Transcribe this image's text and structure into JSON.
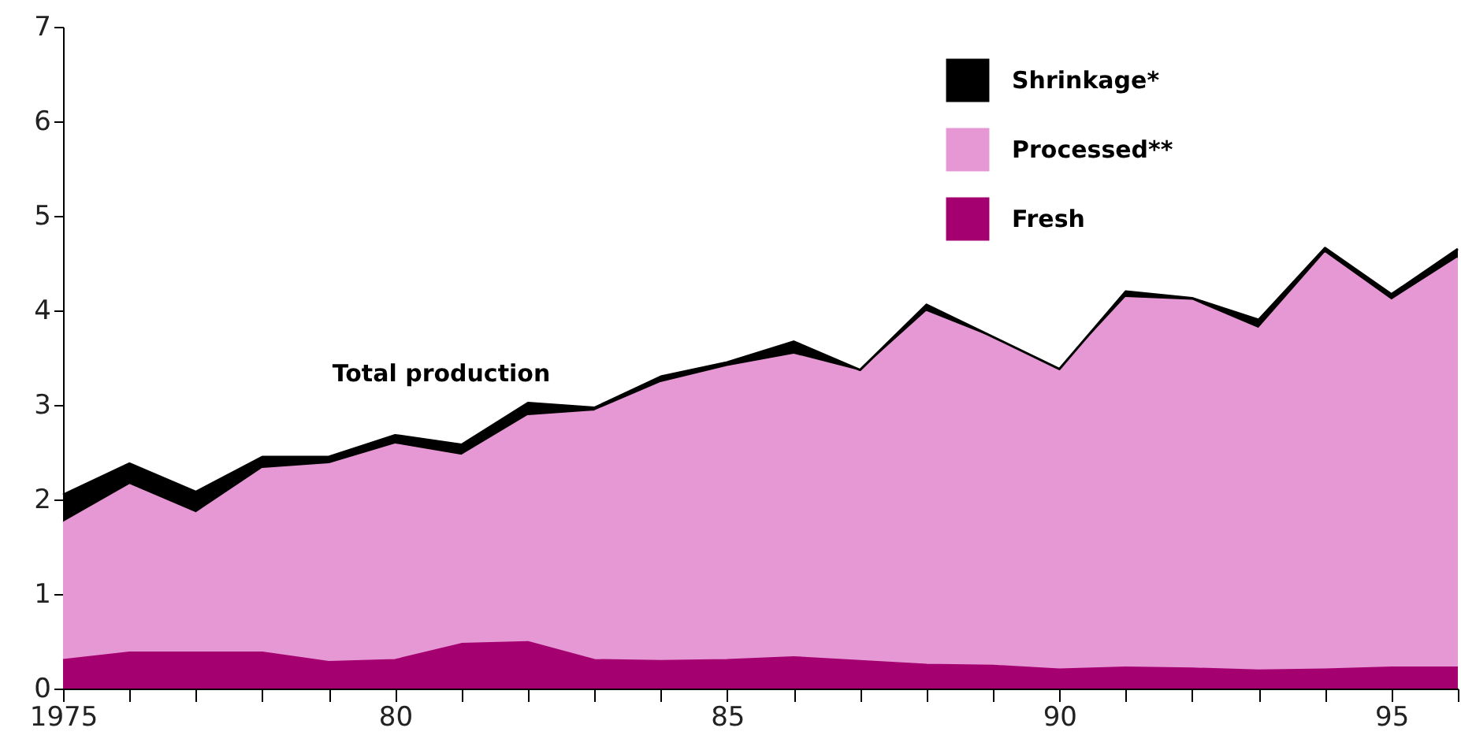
{
  "chart_data": {
    "type": "area",
    "stacked": true,
    "x": [
      1975,
      1976,
      1977,
      1978,
      1979,
      1980,
      1981,
      1982,
      1983,
      1984,
      1985,
      1986,
      1987,
      1988,
      1989,
      1990,
      1991,
      1992,
      1993,
      1994,
      1995,
      1996
    ],
    "series": [
      {
        "name": "Fresh",
        "color": "#a50070",
        "values": [
          0.3,
          0.38,
          0.38,
          0.38,
          0.28,
          0.3,
          0.47,
          0.49,
          0.3,
          0.29,
          0.3,
          0.33,
          0.29,
          0.25,
          0.24,
          0.2,
          0.22,
          0.21,
          0.19,
          0.2,
          0.22,
          0.22
        ]
      },
      {
        "name": "Processed**",
        "color": "#e698d4",
        "values": [
          1.45,
          1.77,
          1.47,
          1.94,
          2.09,
          2.28,
          1.99,
          2.39,
          2.63,
          2.94,
          3.1,
          3.2,
          3.06,
          3.73,
          3.46,
          3.17,
          3.91,
          3.89,
          3.61,
          4.4,
          3.88,
          4.33
        ]
      },
      {
        "name": "Shrinkage*",
        "color": "#000000",
        "values": [
          0.3,
          0.23,
          0.23,
          0.13,
          0.08,
          0.1,
          0.12,
          0.14,
          0.04,
          0.07,
          0.05,
          0.14,
          0.02,
          0.08,
          0.02,
          0.01,
          0.07,
          0.03,
          0.1,
          0.06,
          0.07,
          0.1
        ]
      }
    ],
    "xlim": [
      1975,
      1996
    ],
    "xticks": [
      {
        "value": 1975,
        "label": "1975"
      },
      {
        "value": 1976,
        "label": null
      },
      {
        "value": 1977,
        "label": null
      },
      {
        "value": 1978,
        "label": null
      },
      {
        "value": 1979,
        "label": null
      },
      {
        "value": 1980,
        "label": "80"
      },
      {
        "value": 1981,
        "label": null
      },
      {
        "value": 1982,
        "label": null
      },
      {
        "value": 1983,
        "label": null
      },
      {
        "value": 1984,
        "label": null
      },
      {
        "value": 1985,
        "label": "85"
      },
      {
        "value": 1986,
        "label": null
      },
      {
        "value": 1987,
        "label": null
      },
      {
        "value": 1988,
        "label": null
      },
      {
        "value": 1989,
        "label": null
      },
      {
        "value": 1990,
        "label": "90"
      },
      {
        "value": 1991,
        "label": null
      },
      {
        "value": 1992,
        "label": null
      },
      {
        "value": 1993,
        "label": null
      },
      {
        "value": 1994,
        "label": null
      },
      {
        "value": 1995,
        "label": "95"
      },
      {
        "value": 1996,
        "label": null
      }
    ],
    "ylim": [
      0,
      7
    ],
    "yticks": [
      0,
      1,
      2,
      3,
      4,
      5,
      6,
      7
    ],
    "annotations": [
      "Total production"
    ],
    "legend": "top right",
    "grid": false
  }
}
